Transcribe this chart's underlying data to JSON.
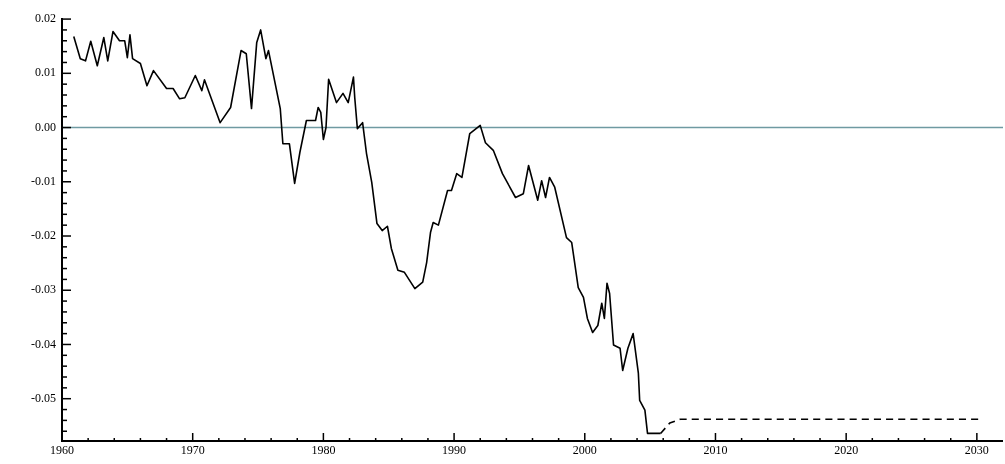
{
  "chart_data": {
    "type": "line",
    "legend": false,
    "marker": "none",
    "xlim": [
      1960,
      2032
    ],
    "ylim": [
      -0.0578,
      0.0202
    ],
    "xticks": [
      1960,
      {
        "value": 1962,
        "label": null
      },
      {
        "value": 1964,
        "label": null
      },
      {
        "value": 1966,
        "label": null
      },
      {
        "value": 1968,
        "label": null
      },
      1970,
      {
        "value": 1972,
        "label": null
      },
      {
        "value": 1974,
        "label": null
      },
      {
        "value": 1976,
        "label": null
      },
      {
        "value": 1978,
        "label": null
      },
      1980,
      {
        "value": 1982,
        "label": null
      },
      {
        "value": 1984,
        "label": null
      },
      {
        "value": 1986,
        "label": null
      },
      {
        "value": 1988,
        "label": null
      },
      1990,
      {
        "value": 1992,
        "label": null
      },
      {
        "value": 1994,
        "label": null
      },
      {
        "value": 1996,
        "label": null
      },
      {
        "value": 1998,
        "label": null
      },
      2000,
      {
        "value": 2002,
        "label": null
      },
      {
        "value": 2004,
        "label": null
      },
      {
        "value": 2006,
        "label": null
      },
      {
        "value": 2008,
        "label": null
      },
      2010,
      {
        "value": 2012,
        "label": null
      },
      {
        "value": 2014,
        "label": null
      },
      {
        "value": 2016,
        "label": null
      },
      {
        "value": 2018,
        "label": null
      },
      2020,
      {
        "value": 2022,
        "label": null
      },
      {
        "value": 2024,
        "label": null
      },
      {
        "value": 2026,
        "label": null
      },
      {
        "value": 2028,
        "label": null
      },
      2030
    ],
    "yticks": [
      {
        "value": 0.02,
        "label": "0.02"
      },
      {
        "value": 0.018,
        "label": null
      },
      {
        "value": 0.016,
        "label": null
      },
      {
        "value": 0.014,
        "label": null
      },
      {
        "value": 0.012,
        "label": null
      },
      {
        "value": 0.01,
        "label": "0.01"
      },
      {
        "value": 0.008,
        "label": null
      },
      {
        "value": 0.006,
        "label": null
      },
      {
        "value": 0.004,
        "label": null
      },
      {
        "value": 0.002,
        "label": null
      },
      {
        "value": 0,
        "label": "0.00"
      },
      {
        "value": -0.002,
        "label": null
      },
      {
        "value": -0.004,
        "label": null
      },
      {
        "value": -0.006,
        "label": null
      },
      {
        "value": -0.008,
        "label": null
      },
      {
        "value": -0.01,
        "label": "-0.01"
      },
      {
        "value": -0.012,
        "label": null
      },
      {
        "value": -0.014,
        "label": null
      },
      {
        "value": -0.016,
        "label": null
      },
      {
        "value": -0.018,
        "label": null
      },
      {
        "value": -0.02,
        "label": "-0.02"
      },
      {
        "value": -0.022,
        "label": null
      },
      {
        "value": -0.024,
        "label": null
      },
      {
        "value": -0.026,
        "label": null
      },
      {
        "value": -0.028,
        "label": null
      },
      {
        "value": -0.03,
        "label": "-0.03"
      },
      {
        "value": -0.032,
        "label": null
      },
      {
        "value": -0.034,
        "label": null
      },
      {
        "value": -0.036,
        "label": null
      },
      {
        "value": -0.038,
        "label": null
      },
      {
        "value": -0.04,
        "label": "-0.04"
      },
      {
        "value": -0.042,
        "label": null
      },
      {
        "value": -0.044,
        "label": null
      },
      {
        "value": -0.046,
        "label": null
      },
      {
        "value": -0.048,
        "label": null
      },
      {
        "value": -0.05,
        "label": "-0.05"
      },
      {
        "value": -0.052,
        "label": null
      },
      {
        "value": -0.054,
        "label": null
      },
      {
        "value": -0.056,
        "label": null
      }
    ],
    "ref_lines": [
      {
        "axis": "y",
        "value": 0,
        "color": "#6f9aa2"
      }
    ],
    "series": [
      {
        "color": "#000000",
        "line_style": "solid",
        "x": [
          1960.9,
          1961.4,
          1961.8,
          1962.2,
          1962.7,
          1963.2,
          1963.5,
          1963.9,
          1964.4,
          1964.8,
          1965.0,
          1965.2,
          1965.4,
          1966.0,
          1966.5,
          1967.0,
          1968.0,
          1968.5,
          1969.0,
          1969.4,
          1970.2,
          1970.7,
          1970.9,
          1972.1,
          1972.9,
          1973.7,
          1974.1,
          1974.5,
          1974.9,
          1975.2,
          1975.6,
          1975.8,
          1976.7,
          1976.9,
          1977.4,
          1977.8,
          1978.2,
          1978.7,
          1979.4,
          1979.6,
          1979.8,
          1980.0,
          1980.2,
          1980.4,
          1981.0,
          1981.5,
          1981.9,
          1982.3,
          1982.4,
          1982.6,
          1983.0,
          1983.3,
          1983.7,
          1984.1,
          1984.5,
          1984.9,
          1985.2,
          1985.7,
          1986.2,
          1987.0,
          1987.6,
          1987.9,
          1988.2,
          1988.4,
          1988.8,
          1989.5,
          1989.8,
          1990.2,
          1990.6,
          1991.2,
          1992.0,
          1992.4,
          1993.0,
          1993.7,
          1994.7,
          1995.3,
          1995.7,
          1996.4,
          1996.7,
          1997.0,
          1997.3,
          1997.7,
          1998.6,
          1999.0,
          1999.5,
          1999.9,
          2000.2,
          2000.6,
          2001.0,
          2001.3,
          2001.5,
          2001.7,
          2001.9,
          2002.2,
          2002.7,
          2002.9,
          2003.3,
          2003.7,
          2004.1,
          2004.2,
          2004.6,
          2004.8,
          2005.8
        ],
        "values": [
          0.0168,
          0.0127,
          0.0123,
          0.0159,
          0.0114,
          0.0166,
          0.0123,
          0.0177,
          0.016,
          0.016,
          0.0129,
          0.0171,
          0.0127,
          0.0118,
          0.0077,
          0.0105,
          0.0072,
          0.0072,
          0.0053,
          0.0055,
          0.0096,
          0.0068,
          0.0088,
          0.0009,
          0.0037,
          0.0142,
          0.0136,
          0.0035,
          0.0157,
          0.018,
          0.0127,
          0.0142,
          0.0035,
          -0.003,
          -0.003,
          -0.0103,
          -0.0046,
          0.0013,
          0.0013,
          0.0037,
          0.0028,
          -0.0022,
          0.0,
          0.0089,
          0.0046,
          0.0063,
          0.0046,
          0.0093,
          0.0055,
          -0.0002,
          0.0009,
          -0.0048,
          -0.0101,
          -0.0177,
          -0.019,
          -0.0182,
          -0.0223,
          -0.0263,
          -0.0267,
          -0.0297,
          -0.0285,
          -0.0249,
          -0.0193,
          -0.0175,
          -0.018,
          -0.0116,
          -0.0116,
          -0.0085,
          -0.0092,
          -0.0011,
          0.0004,
          -0.0028,
          -0.0042,
          -0.0085,
          -0.0129,
          -0.0122,
          -0.007,
          -0.0134,
          -0.0098,
          -0.0129,
          -0.0092,
          -0.011,
          -0.0203,
          -0.0212,
          -0.0295,
          -0.0313,
          -0.0352,
          -0.0378,
          -0.0365,
          -0.0324,
          -0.0352,
          -0.0287,
          -0.0306,
          -0.0401,
          -0.0407,
          -0.0448,
          -0.0407,
          -0.038,
          -0.0453,
          -0.0503,
          -0.0521,
          -0.0564,
          -0.0564
        ]
      },
      {
        "color": "#000000",
        "line_style": "dashed",
        "x": [
          2005.8,
          2006.5,
          2007.3,
          2030.1
        ],
        "values": [
          -0.0564,
          -0.0545,
          -0.0538,
          -0.0538
        ]
      }
    ]
  }
}
